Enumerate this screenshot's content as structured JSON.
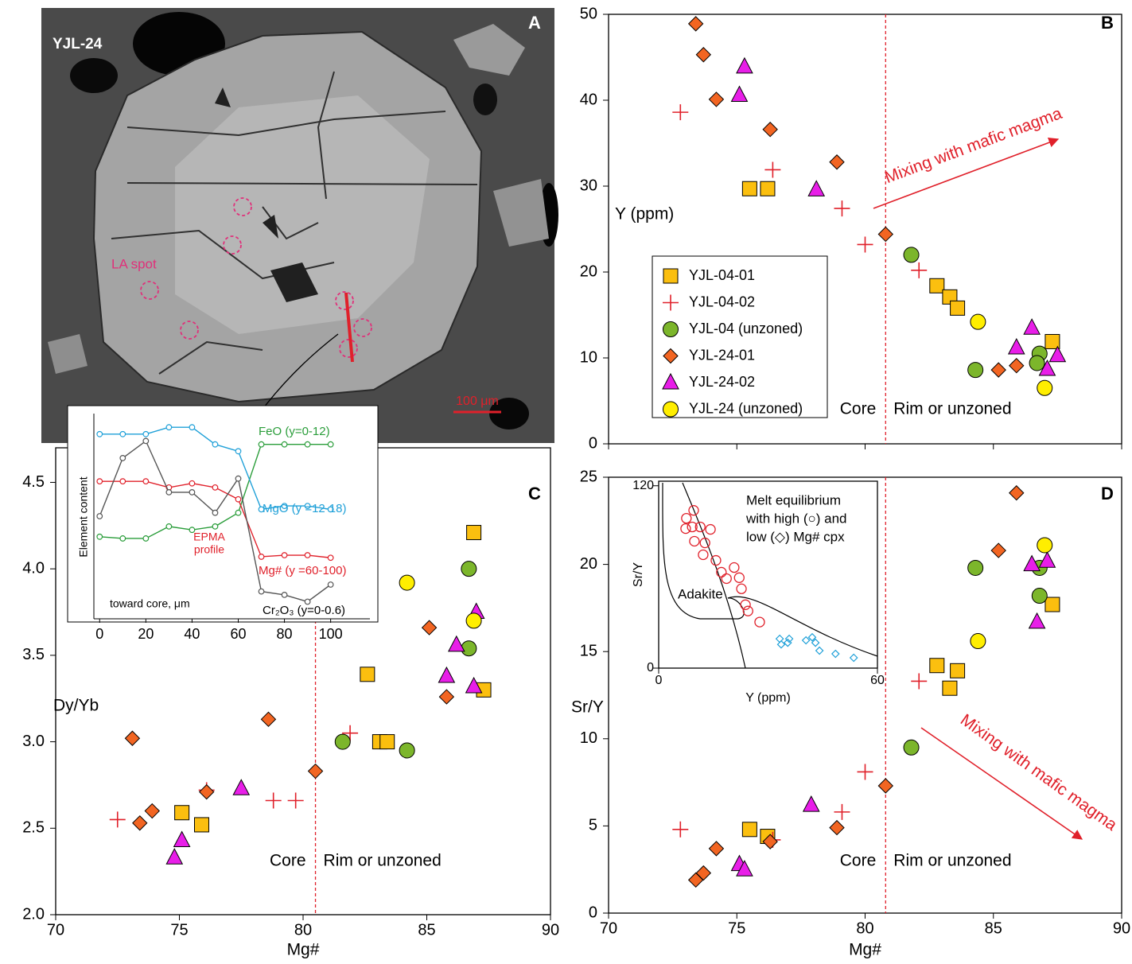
{
  "panel_a": {
    "panel_label": "A",
    "sample": "YJL-24",
    "spot_label": "LA spot",
    "scale_bar": "100 μm"
  },
  "chart_data": [
    {
      "type": "line",
      "xlim": [
        -2.5,
        117
      ],
      "xticks": [
        0,
        20,
        40,
        60,
        80,
        100
      ],
      "xlabel": "toward core, μm",
      "ylabel": "Element content",
      "annotation": [
        "EPMA",
        "profile"
      ],
      "x": [
        0,
        10,
        20,
        30,
        40,
        50,
        60,
        70,
        80,
        90,
        100
      ],
      "series": [
        {
          "name": "FeO (y=0-12)",
          "color": "#2a9d3a",
          "ylim": [
            0,
            12
          ],
          "values": [
            4.8,
            4.7,
            4.7,
            5.4,
            5.2,
            5.4,
            6.2,
            10.2,
            10.2,
            10.2,
            10.2
          ]
        },
        {
          "name": "MgO (y =12-18)",
          "color": "#1fa0d8",
          "ylim": [
            12,
            18
          ],
          "values": [
            17.4,
            17.4,
            17.4,
            17.6,
            17.6,
            17.1,
            16.9,
            15.2,
            15.3,
            15.3,
            15.2
          ]
        },
        {
          "name": "Mg# (y =60-100)",
          "color": "#e0202a",
          "ylim": [
            60,
            100
          ],
          "values": [
            86.8,
            86.8,
            86.8,
            85.6,
            86.4,
            85.6,
            83.3,
            72.1,
            72.4,
            72.4,
            71.9
          ]
        },
        {
          "name": "Cr₂O₃ (y=0-0.6)",
          "color": "#555555",
          "ylim": [
            0,
            0.6
          ],
          "values": [
            0.3,
            0.47,
            0.52,
            0.37,
            0.37,
            0.31,
            0.41,
            0.08,
            0.07,
            0.05,
            0.1
          ]
        }
      ]
    },
    {
      "type": "scatter",
      "panel_label": "B",
      "ylabel": "Y (ppm)",
      "xlim": [
        70,
        90
      ],
      "ylim": [
        0,
        50
      ],
      "xticks": [
        70,
        75,
        80,
        85,
        90
      ],
      "yticks": [
        0,
        10,
        20,
        30,
        40,
        50
      ],
      "show_xtick_labels": false,
      "legend": "left",
      "divider_x": 80.8,
      "region_labels": [
        "Core",
        "Rim or unzoned"
      ],
      "annotation": "Mixing with mafic magma",
      "series": [
        {
          "name": "YJL-04-01",
          "marker": "square",
          "color": "#fbbf0f",
          "x": [
            75.5,
            76.2,
            82.8,
            83.3,
            83.6,
            87.3
          ],
          "values": [
            29.7,
            29.7,
            18.4,
            17.1,
            15.8,
            11.9
          ]
        },
        {
          "name": "YJL-04-02",
          "marker": "plus",
          "color": "#e0202a",
          "x": [
            72.8,
            76.4,
            79.1,
            80.0,
            82.1
          ],
          "values": [
            38.6,
            31.9,
            27.4,
            23.2,
            20.2
          ]
        },
        {
          "name": "YJL-04 (unzoned)",
          "marker": "circle",
          "color": "#7cb62b",
          "x": [
            81.8,
            84.3,
            86.8,
            86.7
          ],
          "values": [
            22.0,
            8.6,
            10.5,
            9.4
          ]
        },
        {
          "name": "YJL-24-01",
          "marker": "diamond",
          "color": "#f26522",
          "x": [
            73.4,
            73.7,
            74.2,
            76.3,
            78.9,
            80.8,
            85.2,
            85.9
          ],
          "values": [
            48.9,
            45.3,
            40.1,
            36.6,
            32.8,
            24.4,
            8.6,
            9.1
          ]
        },
        {
          "name": "YJL-24-02",
          "marker": "triangle",
          "color": "#e81ee8",
          "x": [
            75.3,
            75.1,
            78.1,
            86.5,
            85.9,
            87.1,
            87.5
          ],
          "values": [
            43.9,
            40.6,
            29.6,
            13.5,
            11.2,
            8.7,
            10.3
          ]
        },
        {
          "name": "YJL-24 (unzoned)",
          "marker": "circle",
          "color": "#ffee00",
          "x": [
            84.4,
            87.0
          ],
          "values": [
            14.2,
            6.5
          ]
        }
      ]
    },
    {
      "type": "scatter",
      "panel_label": "C",
      "ylabel": "Dy/Yb",
      "xlabel": "Mg#",
      "xlim": [
        70,
        90
      ],
      "ylim": [
        2.0,
        4.7
      ],
      "xticks": [
        70,
        75,
        80,
        85,
        90
      ],
      "yticks": [
        {
          "value": 2.0,
          "label": "2.0"
        },
        2.5,
        {
          "value": 3.0,
          "label": "3.0"
        },
        3.5,
        {
          "value": 4.0,
          "label": "4.0"
        },
        4.5
      ],
      "show_xtick_labels": true,
      "divider_x": 80.5,
      "region_labels": [
        "Core",
        "Rim or unzoned"
      ],
      "series": [
        {
          "marker": "square",
          "color": "#fbbf0f",
          "x": [
            86.9,
            82.6,
            87.3,
            83.1,
            83.4,
            75.1,
            75.9
          ],
          "values": [
            4.21,
            3.39,
            3.3,
            3.0,
            3.0,
            2.59,
            2.52
          ]
        },
        {
          "marker": "plus",
          "color": "#e0202a",
          "x": [
            72.5,
            76.1,
            78.8,
            79.7,
            81.9
          ],
          "values": [
            2.55,
            2.72,
            2.66,
            2.66,
            3.05
          ]
        },
        {
          "marker": "circle",
          "color": "#7cb62b",
          "x": [
            81.6,
            84.2,
            86.7,
            86.7
          ],
          "values": [
            3.0,
            2.95,
            4.0,
            3.54
          ]
        },
        {
          "marker": "diamond",
          "color": "#f26522",
          "x": [
            73.1,
            73.4,
            73.9,
            76.1,
            78.6,
            80.5,
            85.1,
            85.8
          ],
          "values": [
            3.02,
            2.53,
            2.6,
            2.71,
            3.13,
            2.83,
            3.66,
            3.26
          ]
        },
        {
          "marker": "triangle",
          "color": "#e81ee8",
          "x": [
            77.5,
            75.1,
            74.8,
            86.2,
            85.8,
            87.0,
            86.9
          ],
          "values": [
            2.73,
            2.43,
            2.33,
            3.56,
            3.38,
            3.75,
            3.32
          ]
        },
        {
          "marker": "circle",
          "color": "#ffee00",
          "x": [
            84.2,
            86.9
          ],
          "values": [
            3.92,
            3.7
          ]
        }
      ]
    },
    {
      "type": "scatter",
      "panel_label": "D",
      "ylabel": "Sr/Y",
      "xlabel": "Mg#",
      "xlim": [
        70,
        90
      ],
      "ylim": [
        0,
        25
      ],
      "xticks": [
        70,
        75,
        80,
        85,
        90
      ],
      "yticks": [
        0,
        5,
        10,
        15,
        20,
        25
      ],
      "show_xtick_labels": true,
      "divider_x": 80.8,
      "region_labels": [
        "Core",
        "Rim or unzoned"
      ],
      "annotation": "Mixing with mafic magma",
      "series": [
        {
          "marker": "square",
          "color": "#fbbf0f",
          "x": [
            75.5,
            76.2,
            82.8,
            83.6,
            83.3,
            87.3
          ],
          "values": [
            4.8,
            4.4,
            14.2,
            13.9,
            12.9,
            17.7
          ]
        },
        {
          "marker": "plus",
          "color": "#e0202a",
          "x": [
            72.8,
            76.4,
            79.1,
            80.0,
            82.1
          ],
          "values": [
            4.8,
            4.2,
            5.8,
            8.1,
            13.3
          ]
        },
        {
          "marker": "circle",
          "color": "#7cb62b",
          "x": [
            81.8,
            84.3,
            86.8,
            86.8
          ],
          "values": [
            9.5,
            19.8,
            19.8,
            18.2
          ]
        },
        {
          "marker": "diamond",
          "color": "#f26522",
          "x": [
            73.4,
            73.7,
            74.2,
            76.3,
            78.9,
            80.8,
            85.2,
            85.9
          ],
          "values": [
            1.9,
            2.3,
            3.7,
            4.1,
            4.9,
            7.3,
            20.8,
            24.1
          ]
        },
        {
          "marker": "triangle",
          "color": "#e81ee8",
          "x": [
            75.1,
            75.3,
            77.9,
            86.5,
            87.1,
            86.7
          ],
          "values": [
            2.8,
            2.5,
            6.2,
            20.0,
            20.2,
            16.7
          ]
        },
        {
          "marker": "circle",
          "color": "#ffee00",
          "x": [
            84.4,
            87.0
          ],
          "values": [
            15.6,
            21.1
          ]
        }
      ]
    },
    {
      "type": "scatter",
      "ylabel": "Sr/Y",
      "xlabel": "Y (ppm)",
      "xlim": [
        0,
        60
      ],
      "ylim": [
        0,
        123
      ],
      "xticks": [
        0,
        60
      ],
      "yticks": [
        0,
        120
      ],
      "show_xtick_labels": true,
      "field_label": "Adakite",
      "legend_lines": [
        "Melt equilibrium",
        "with high (○) and",
        "low (◇) Mg# cpx"
      ],
      "series": [
        {
          "marker": "open-circle",
          "color": "#e0202a",
          "x": [
            7.6,
            9.6,
            7.4,
            9.2,
            11.4,
            14.2,
            9.8,
            12.7,
            12.2,
            15.7,
            17.2,
            18.6,
            20.7,
            22.1,
            22.7,
            23.8,
            24.5,
            27.7
          ],
          "values": [
            98.6,
            103.8,
            91.8,
            92.9,
            92.9,
            91.3,
            83.5,
            82.4,
            74.6,
            70.9,
            63.1,
            58.9,
            66.2,
            59.5,
            52.2,
            41.7,
            37.6,
            30.3
          ]
        },
        {
          "marker": "open-diamond",
          "color": "#1fa0d8",
          "x": [
            33.2,
            33.6,
            35.4,
            35.8,
            40.4,
            42.1,
            43.0,
            44.1,
            48.5,
            53.5
          ],
          "values": [
            19.3,
            15.6,
            16.7,
            19.3,
            18.3,
            20.3,
            16.7,
            11.5,
            9.4,
            6.8
          ]
        }
      ]
    }
  ]
}
